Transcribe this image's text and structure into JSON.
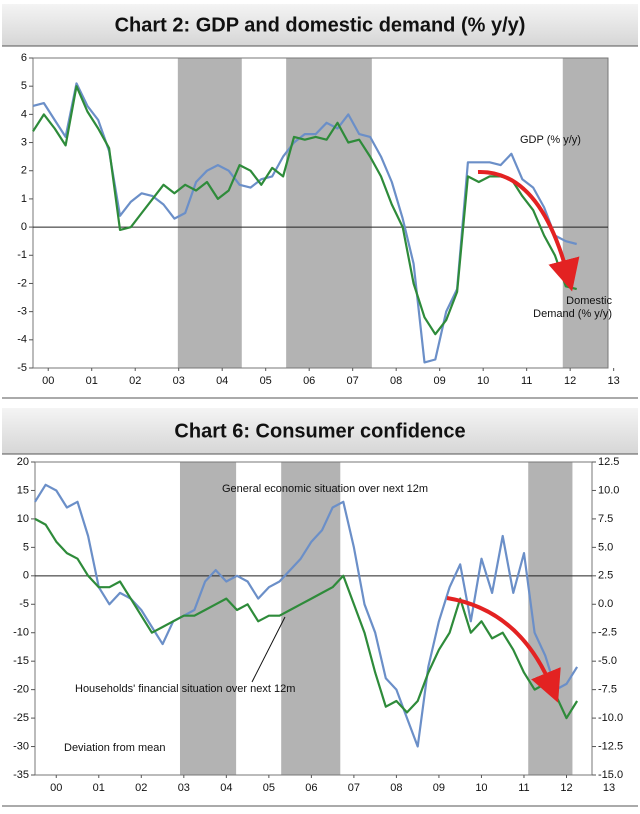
{
  "chart_data": [
    {
      "type": "line",
      "title": "Chart 2: GDP and domestic demand (% y/y)",
      "x": [
        2000,
        2000.25,
        2000.5,
        2000.75,
        2001,
        2001.25,
        2001.5,
        2001.75,
        2002,
        2002.25,
        2002.5,
        2002.75,
        2003,
        2003.25,
        2003.5,
        2003.75,
        2004,
        2004.25,
        2004.5,
        2004.75,
        2005,
        2005.25,
        2005.5,
        2005.75,
        2006,
        2006.25,
        2006.5,
        2006.75,
        2007,
        2007.25,
        2007.5,
        2007.75,
        2008,
        2008.25,
        2008.5,
        2008.75,
        2009,
        2009.25,
        2009.5,
        2009.75,
        2010,
        2010.25,
        2010.5,
        2010.75,
        2011,
        2011.25,
        2011.5,
        2011.75,
        2012,
        2012.25,
        2012.5
      ],
      "series": [
        {
          "name": "GDP (% y/y)",
          "color": "#6b8fc8",
          "values": [
            4.3,
            4.4,
            3.8,
            3.2,
            5.1,
            4.3,
            3.8,
            2.7,
            0.4,
            0.9,
            1.2,
            1.1,
            0.8,
            0.3,
            0.5,
            1.6,
            2.0,
            2.2,
            2.0,
            1.5,
            1.4,
            1.7,
            1.8,
            2.5,
            3.0,
            3.3,
            3.3,
            3.7,
            3.5,
            4.0,
            3.3,
            3.2,
            2.5,
            1.6,
            0.3,
            -1.3,
            -4.8,
            -4.7,
            -3.0,
            -2.2,
            2.3,
            2.3,
            2.3,
            2.2,
            2.6,
            1.7,
            1.4,
            0.7,
            -0.3,
            -0.5,
            -0.6
          ]
        },
        {
          "name": "Domestic Demand (% y/y)",
          "color": "#2e8b3a",
          "values": [
            3.4,
            4.0,
            3.5,
            2.9,
            5.0,
            4.1,
            3.5,
            2.8,
            -0.1,
            0.0,
            0.5,
            1.0,
            1.5,
            1.2,
            1.5,
            1.3,
            1.6,
            1.0,
            1.3,
            2.2,
            2.0,
            1.5,
            2.1,
            1.8,
            3.2,
            3.1,
            3.2,
            3.1,
            3.7,
            3.0,
            3.1,
            2.5,
            1.8,
            0.8,
            0.0,
            -2.0,
            -3.2,
            -3.8,
            -3.3,
            -2.3,
            1.8,
            1.6,
            1.8,
            1.8,
            1.7,
            1.1,
            0.6,
            -0.3,
            -1.0,
            -2.1,
            -2.2
          ]
        }
      ],
      "xlim": [
        2000,
        2013.22
      ],
      "xticks": [
        {
          "value": 2000.35,
          "label": "00"
        },
        {
          "value": 2001.35,
          "label": "01"
        },
        {
          "value": 2002.35,
          "label": "02"
        },
        {
          "value": 2003.35,
          "label": "03"
        },
        {
          "value": 2004.35,
          "label": "04"
        },
        {
          "value": 2005.35,
          "label": "05"
        },
        {
          "value": 2006.35,
          "label": "06"
        },
        {
          "value": 2007.35,
          "label": "07"
        },
        {
          "value": 2008.35,
          "label": "08"
        },
        {
          "value": 2009.35,
          "label": "09"
        },
        {
          "value": 2010.35,
          "label": "10"
        },
        {
          "value": 2011.35,
          "label": "11"
        },
        {
          "value": 2012.35,
          "label": "12"
        },
        {
          "value": 2013.35,
          "label": "13"
        }
      ],
      "ylim": [
        -5,
        6
      ],
      "yticks": [
        -5,
        -4,
        -3,
        -2,
        -1,
        0,
        1,
        2,
        3,
        4,
        5,
        6
      ],
      "shaded": [
        [
          2003.33,
          2004.8
        ],
        [
          2005.82,
          2007.79
        ],
        [
          2012.18,
          2013.22
        ]
      ],
      "shade_color": "#b3b3b3",
      "grid": false
    },
    {
      "type": "line",
      "title": "Chart 6: Consumer confidence",
      "x": [
        2000,
        2000.25,
        2000.5,
        2000.75,
        2001,
        2001.25,
        2001.5,
        2001.75,
        2002,
        2002.25,
        2002.5,
        2002.75,
        2003,
        2003.25,
        2003.5,
        2003.75,
        2004,
        2004.25,
        2004.5,
        2004.75,
        2005,
        2005.25,
        2005.5,
        2005.75,
        2006,
        2006.25,
        2006.5,
        2006.75,
        2007,
        2007.25,
        2007.5,
        2007.75,
        2008,
        2008.25,
        2008.5,
        2008.75,
        2009,
        2009.25,
        2009.5,
        2009.75,
        2010,
        2010.25,
        2010.5,
        2010.75,
        2011,
        2011.25,
        2011.5,
        2011.75,
        2012,
        2012.25,
        2012.5,
        2012.75
      ],
      "series": [
        {
          "name": "General economic situation over next 12m",
          "color": "#6b8fc8",
          "values": [
            13,
            16,
            15,
            12,
            13,
            7,
            -2,
            -5,
            -3,
            -4,
            -6,
            -9,
            -12,
            -8,
            -7,
            -6,
            -1,
            1,
            -1,
            0,
            -1,
            -4,
            -2,
            -1,
            1,
            3,
            6,
            8,
            12,
            13,
            5,
            -5,
            -10,
            -18,
            -20,
            -25,
            -30,
            -16,
            -8,
            -2,
            2,
            -8,
            3,
            -3,
            7,
            -3,
            4,
            -10,
            -14,
            -20,
            -19,
            -16
          ]
        },
        {
          "name": "Households' financial situation over next 12m",
          "color": "#2e8b3a",
          "values": [
            10,
            9,
            6,
            4,
            3,
            0,
            -2,
            -2,
            -1,
            -4,
            -7,
            -10,
            -9,
            -8,
            -7,
            -7,
            -6,
            -5,
            -4,
            -6,
            -5,
            -8,
            -7,
            -7,
            -6,
            -5,
            -4,
            -3,
            -2,
            0,
            -5,
            -10,
            -17,
            -23,
            -22,
            -24,
            -22,
            -17,
            -13,
            -10,
            -4,
            -10,
            -8,
            -11,
            -10,
            -13,
            -17,
            -20,
            -19,
            -21,
            -25,
            -22
          ]
        }
      ],
      "note": "Deviation from mean",
      "xlim": [
        2000,
        2013.1
      ],
      "xticks": [
        {
          "value": 2000.5,
          "label": "00"
        },
        {
          "value": 2001.5,
          "label": "01"
        },
        {
          "value": 2002.5,
          "label": "02"
        },
        {
          "value": 2003.5,
          "label": "03"
        },
        {
          "value": 2004.5,
          "label": "04"
        },
        {
          "value": 2005.5,
          "label": "05"
        },
        {
          "value": 2006.5,
          "label": "06"
        },
        {
          "value": 2007.5,
          "label": "07"
        },
        {
          "value": 2008.5,
          "label": "08"
        },
        {
          "value": 2009.5,
          "label": "09"
        },
        {
          "value": 2010.5,
          "label": "10"
        },
        {
          "value": 2011.5,
          "label": "11"
        },
        {
          "value": 2012.5,
          "label": "12"
        },
        {
          "value": 2013.5,
          "label": "13"
        }
      ],
      "ylim": [
        -35,
        20
      ],
      "yticks": [
        -35,
        -30,
        -25,
        -20,
        -15,
        -10,
        -5,
        0,
        5,
        10,
        15,
        20
      ],
      "y2lim": [
        -15,
        12.5
      ],
      "y2ticks": [
        {
          "value": -15,
          "label": "-15.0"
        },
        -12.5,
        {
          "value": -10,
          "label": "-10.0"
        },
        -7.5,
        {
          "value": -5,
          "label": "-5.0"
        },
        -2.5,
        {
          "value": 0,
          "label": "0.0"
        },
        2.5,
        {
          "value": 5,
          "label": "5.0"
        },
        7.5,
        {
          "value": 10,
          "label": "10.0"
        },
        12.5
      ],
      "shaded": [
        [
          2003.41,
          2004.73
        ],
        [
          2005.79,
          2007.18
        ],
        [
          2011.6,
          2012.64
        ]
      ],
      "shade_color": "#b3b3b3",
      "grid": false
    }
  ]
}
